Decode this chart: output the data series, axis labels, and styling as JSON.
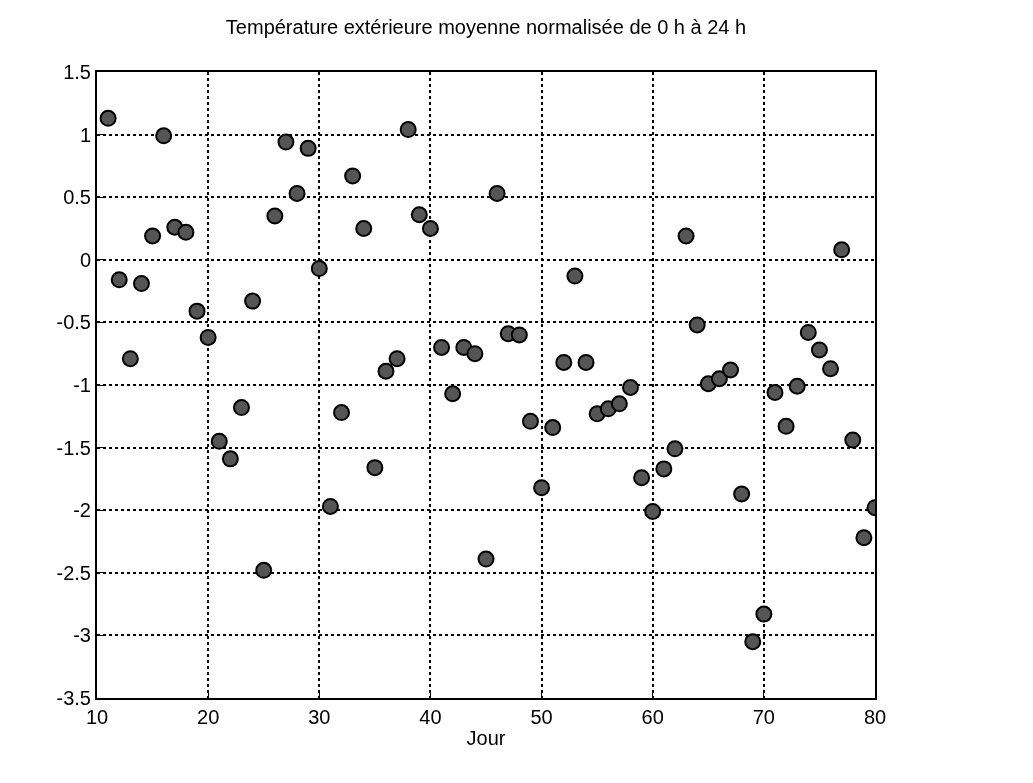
{
  "chart_data": {
    "type": "scatter",
    "title": "Température extérieure moyenne normalisée de 0 h à 24 h",
    "xlabel": "Jour",
    "x": [
      11,
      12,
      13,
      14,
      15,
      16,
      17,
      18,
      19,
      20,
      21,
      22,
      23,
      24,
      25,
      26,
      27,
      28,
      29,
      30,
      31,
      32,
      33,
      34,
      35,
      36,
      37,
      38,
      39,
      40,
      41,
      42,
      43,
      44,
      45,
      46,
      47,
      48,
      49,
      50,
      51,
      52,
      53,
      54,
      55,
      56,
      57,
      58,
      59,
      60,
      61,
      62,
      63,
      64,
      65,
      66,
      67,
      68,
      69,
      70,
      71,
      72,
      73,
      74,
      75,
      76,
      77,
      78,
      79,
      80
    ],
    "series": [
      {
        "color": "#555555",
        "values": [
          1.13,
          -0.16,
          -0.79,
          -0.19,
          0.19,
          0.99,
          0.26,
          0.22,
          -0.41,
          -0.62,
          -1.45,
          -1.59,
          -1.18,
          -0.33,
          -2.48,
          0.35,
          0.94,
          0.53,
          0.89,
          -0.07,
          -1.97,
          -1.22,
          0.67,
          0.25,
          -1.66,
          -0.89,
          -0.79,
          1.04,
          0.36,
          0.25,
          -0.7,
          -1.07,
          -0.7,
          -0.75,
          -2.39,
          0.53,
          -0.59,
          -0.6,
          -1.29,
          -1.82,
          -1.34,
          -0.82,
          -0.13,
          -0.82,
          -1.23,
          -1.19,
          -1.15,
          -1.02,
          -1.74,
          -2.01,
          -1.67,
          -1.51,
          0.19,
          -0.52,
          -0.99,
          -0.95,
          -0.88,
          -1.87,
          -3.05,
          -2.83,
          -1.06,
          -1.33,
          -1.01,
          -0.58,
          -0.72,
          -0.87,
          0.08,
          -1.44,
          -2.22,
          -1.98
        ]
      }
    ],
    "xlim": [
      10,
      80
    ],
    "xticks": [
      10,
      20,
      30,
      40,
      50,
      60,
      70,
      80
    ],
    "ylim": [
      -3.5,
      1.5
    ],
    "yticks": [
      -3.5,
      -3,
      -2.5,
      -2,
      -1.5,
      -1,
      -0.5,
      0,
      0.5,
      1,
      1.5
    ],
    "grid": true,
    "marker": "circle"
  }
}
